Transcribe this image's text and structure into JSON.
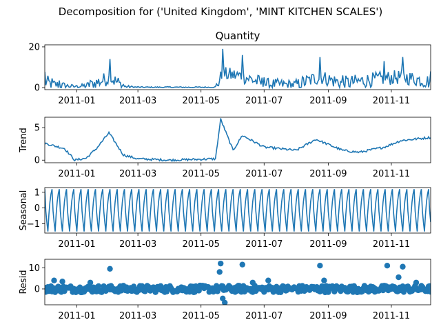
{
  "figure_title": "Decomposition for ('United Kingdom', 'MINT KITCHEN SCALES')",
  "colors": {
    "series": "#1f77b4",
    "axis": "#000000",
    "background": "#ffffff"
  },
  "chart_data": [
    {
      "type": "line",
      "name": "observed",
      "title": "Quantity",
      "ylabel": "",
      "xlim": [
        "2010-12-01",
        "2011-12-09"
      ],
      "ylim": [
        -1,
        21
      ],
      "yticks": [
        0,
        20
      ],
      "xticks": [
        "2011-01",
        "2011-03",
        "2011-05",
        "2011-07",
        "2011-09",
        "2011-11"
      ],
      "keypoints": [
        {
          "x": "2010-12-01",
          "y": 7.8
        },
        {
          "x": "2010-12-08",
          "y": 4.5
        },
        {
          "x": "2010-12-15",
          "y": 3.5
        },
        {
          "x": "2011-01-01",
          "y": 1.0
        },
        {
          "x": "2011-01-14",
          "y": 3.5
        },
        {
          "x": "2011-02-02",
          "y": 14.0
        },
        {
          "x": "2011-02-15",
          "y": 1.5
        },
        {
          "x": "2011-03-01",
          "y": 0.5
        },
        {
          "x": "2011-04-01",
          "y": 0.5
        },
        {
          "x": "2011-05-15",
          "y": 0.5
        },
        {
          "x": "2011-05-22",
          "y": 19.0
        },
        {
          "x": "2011-06-10",
          "y": 16.0
        },
        {
          "x": "2011-07-01",
          "y": 5.0
        },
        {
          "x": "2011-08-01",
          "y": 4.0
        },
        {
          "x": "2011-08-24",
          "y": 15.0
        },
        {
          "x": "2011-09-15",
          "y": 6.0
        },
        {
          "x": "2011-10-25",
          "y": 13.0
        },
        {
          "x": "2011-11-12",
          "y": 15.0
        },
        {
          "x": "2011-12-09",
          "y": 8.0
        }
      ]
    },
    {
      "type": "line",
      "name": "trend",
      "title": "",
      "ylabel": "Trend",
      "xlim": [
        "2010-12-01",
        "2011-12-09"
      ],
      "ylim": [
        -0.4,
        6.6
      ],
      "yticks": [
        0,
        5
      ],
      "xticks": [
        "2011-01",
        "2011-03",
        "2011-05",
        "2011-07",
        "2011-09",
        "2011-11"
      ],
      "keypoints": [
        {
          "x": "2010-12-01",
          "y": 2.6
        },
        {
          "x": "2010-12-10",
          "y": 2.2
        },
        {
          "x": "2010-12-20",
          "y": 1.8
        },
        {
          "x": "2010-12-30",
          "y": 0.0
        },
        {
          "x": "2011-01-10",
          "y": 0.3
        },
        {
          "x": "2011-01-20",
          "y": 1.8
        },
        {
          "x": "2011-02-01",
          "y": 4.2
        },
        {
          "x": "2011-02-15",
          "y": 0.8
        },
        {
          "x": "2011-03-01",
          "y": 0.2
        },
        {
          "x": "2011-04-01",
          "y": 0.0
        },
        {
          "x": "2011-05-15",
          "y": 0.2
        },
        {
          "x": "2011-05-20",
          "y": 6.3
        },
        {
          "x": "2011-06-01",
          "y": 1.5
        },
        {
          "x": "2011-06-10",
          "y": 3.8
        },
        {
          "x": "2011-07-01",
          "y": 2.0
        },
        {
          "x": "2011-08-01",
          "y": 1.5
        },
        {
          "x": "2011-08-20",
          "y": 3.2
        },
        {
          "x": "2011-09-15",
          "y": 1.5
        },
        {
          "x": "2011-10-01",
          "y": 1.2
        },
        {
          "x": "2011-10-25",
          "y": 2.0
        },
        {
          "x": "2011-11-10",
          "y": 3.0
        },
        {
          "x": "2011-12-09",
          "y": 3.5
        }
      ]
    },
    {
      "type": "line",
      "name": "seasonal",
      "title": "",
      "ylabel": "Seasonal",
      "xlim": [
        "2010-12-01",
        "2011-12-09"
      ],
      "ylim": [
        -1.6,
        1.3
      ],
      "yticks": [
        -1,
        0,
        1
      ],
      "xticks": [
        "2011-01",
        "2011-03",
        "2011-05",
        "2011-07",
        "2011-09",
        "2011-11"
      ],
      "period_days": 7,
      "weekly_pattern": [
        1.2,
        -0.2,
        -0.9,
        -1.5,
        -0.4,
        0.4,
        0.9
      ]
    },
    {
      "type": "scatter",
      "name": "resid",
      "title": "",
      "ylabel": "Resid",
      "xlim": [
        "2010-12-01",
        "2011-12-09"
      ],
      "ylim": [
        -7.5,
        14
      ],
      "yticks": [
        0,
        10
      ],
      "xticks": [
        "2011-01",
        "2011-03",
        "2011-05",
        "2011-07",
        "2011-09",
        "2011-11"
      ],
      "outliers": [
        {
          "x": "2010-12-10",
          "y": 4.0
        },
        {
          "x": "2010-12-18",
          "y": 3.5
        },
        {
          "x": "2011-01-14",
          "y": 3.0
        },
        {
          "x": "2011-02-02",
          "y": 9.5
        },
        {
          "x": "2011-05-20",
          "y": 12.0
        },
        {
          "x": "2011-05-19",
          "y": 8.0
        },
        {
          "x": "2011-05-22",
          "y": -4.5
        },
        {
          "x": "2011-05-24",
          "y": -6.5
        },
        {
          "x": "2011-06-10",
          "y": 11.5
        },
        {
          "x": "2011-06-20",
          "y": 3.0
        },
        {
          "x": "2011-07-05",
          "y": 4.0
        },
        {
          "x": "2011-08-24",
          "y": 11.0
        },
        {
          "x": "2011-08-28",
          "y": 4.0
        },
        {
          "x": "2011-10-28",
          "y": 11.0
        },
        {
          "x": "2011-11-08",
          "y": 5.5
        },
        {
          "x": "2011-11-12",
          "y": 10.5
        },
        {
          "x": "2011-11-25",
          "y": 3.0
        }
      ]
    }
  ]
}
